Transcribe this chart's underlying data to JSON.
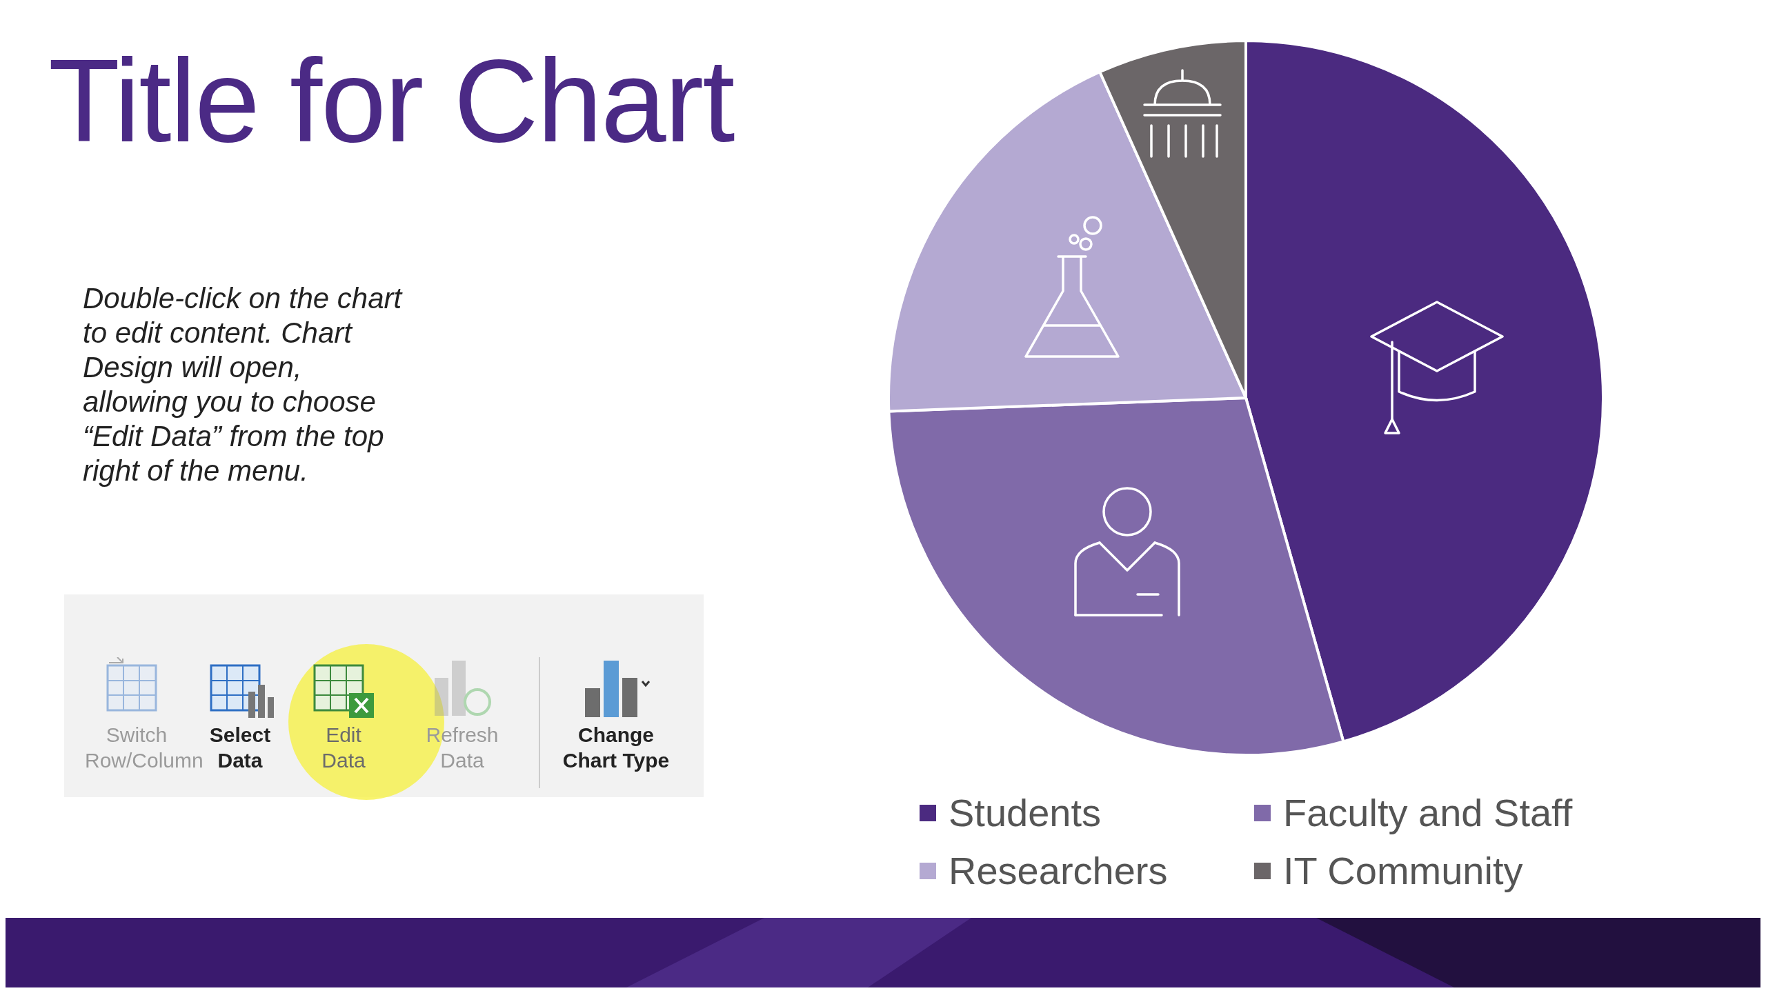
{
  "chart_data": {
    "type": "pie",
    "title": "Title for Chart",
    "categories": [
      "Students",
      "Faculty and Staff",
      "Researchers",
      "IT Community"
    ],
    "values": [
      45.6,
      28.8,
      18.9,
      6.7
    ],
    "colors": [
      "#4b2a80",
      "#806aa9",
      "#b4a9d2",
      "#6b6668"
    ],
    "legend": "bottom",
    "annotations": [
      "Double-click on the chart to edit content. Chart Design will open, allowing you to choose “Edit Data” from the top right of the menu.",
      "Switch Row/Column",
      "Select Data",
      "Edit Data",
      "Refresh Data",
      "Change Chart Type"
    ]
  }
}
